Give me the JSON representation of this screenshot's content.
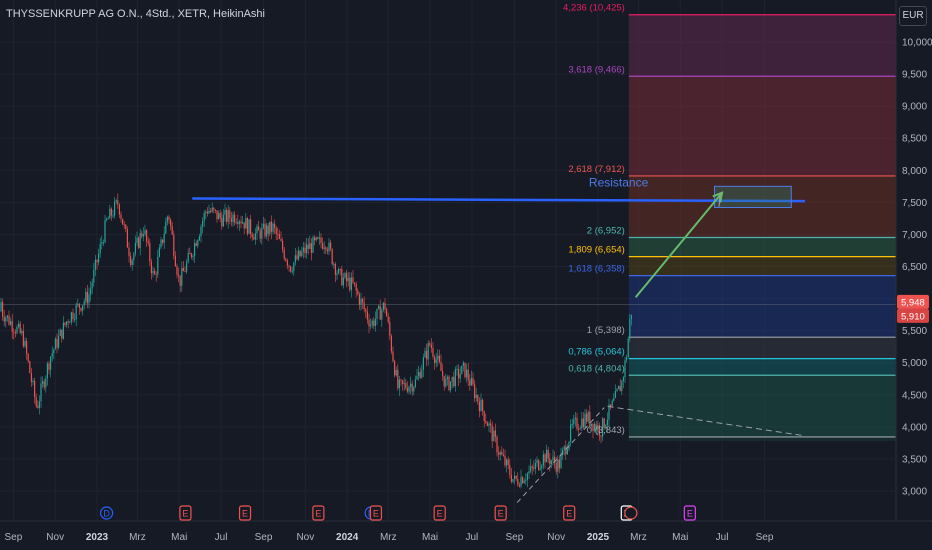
{
  "header": {
    "title": "THYSSENKRUPP AG O.N., 4Std., XETR, HeikinAshi",
    "currency_button": "EUR"
  },
  "colors": {
    "background": "#161a25",
    "up": "#26a69a",
    "down": "#ef5350",
    "resistance": "#2962ff",
    "arrow": "#66bb6a"
  },
  "chart_data": {
    "type": "candlestick",
    "chart_style": "HeikinAshi",
    "y_axis": {
      "scale": "linear",
      "ylim": [
        2600,
        10700
      ],
      "ticks": [
        3000,
        3500,
        4000,
        4500,
        5000,
        5500,
        6000,
        6500,
        7000,
        7500,
        8000,
        8500,
        9000,
        9500,
        10000
      ],
      "tick_labels": [
        "3,000",
        "3,500",
        "4,000",
        "4,500",
        "5,000",
        "5,500",
        "6,000",
        "6,500",
        "7,000",
        "7,500",
        "8,000",
        "8,500",
        "9,000",
        "9,500",
        "10,000"
      ]
    },
    "x_axis": {
      "ticks": [
        {
          "date": "2022-09-01",
          "label": "Sep",
          "bold": false
        },
        {
          "date": "2022-11-01",
          "label": "Nov",
          "bold": false
        },
        {
          "date": "2023-01-01",
          "label": "2023",
          "bold": true
        },
        {
          "date": "2023-03-01",
          "label": "Mrz",
          "bold": false
        },
        {
          "date": "2023-05-01",
          "label": "Mai",
          "bold": false
        },
        {
          "date": "2023-07-01",
          "label": "Jul",
          "bold": false
        },
        {
          "date": "2023-09-01",
          "label": "Sep",
          "bold": false
        },
        {
          "date": "2023-11-01",
          "label": "Nov",
          "bold": false
        },
        {
          "date": "2024-01-01",
          "label": "2024",
          "bold": true
        },
        {
          "date": "2024-03-01",
          "label": "Mrz",
          "bold": false
        },
        {
          "date": "2024-05-01",
          "label": "Mai",
          "bold": false
        },
        {
          "date": "2024-07-01",
          "label": "Jul",
          "bold": false
        },
        {
          "date": "2024-09-01",
          "label": "Sep",
          "bold": false
        },
        {
          "date": "2024-11-01",
          "label": "Nov",
          "bold": false
        },
        {
          "date": "2025-01-01",
          "label": "2025",
          "bold": true
        },
        {
          "date": "2025-03-01",
          "label": "Mrz",
          "bold": false
        },
        {
          "date": "2025-05-01",
          "label": "Mai",
          "bold": false
        },
        {
          "date": "2025-07-01",
          "label": "Jul",
          "bold": false
        },
        {
          "date": "2025-09-01",
          "label": "Sep",
          "bold": false
        }
      ]
    },
    "price_path": [
      {
        "date": "2022-08-15",
        "price": 5800
      },
      {
        "date": "2022-09-15",
        "price": 5400
      },
      {
        "date": "2022-10-05",
        "price": 4300
      },
      {
        "date": "2022-10-25",
        "price": 5100
      },
      {
        "date": "2022-11-20",
        "price": 5700
      },
      {
        "date": "2022-12-20",
        "price": 6050
      },
      {
        "date": "2023-01-15",
        "price": 7200
      },
      {
        "date": "2023-02-01",
        "price": 7500
      },
      {
        "date": "2023-02-20",
        "price": 6600
      },
      {
        "date": "2023-03-10",
        "price": 7100
      },
      {
        "date": "2023-03-25",
        "price": 6300
      },
      {
        "date": "2023-04-15",
        "price": 7350
      },
      {
        "date": "2023-05-01",
        "price": 6250
      },
      {
        "date": "2023-05-20",
        "price": 6750
      },
      {
        "date": "2023-06-10",
        "price": 7400
      },
      {
        "date": "2023-07-01",
        "price": 7250
      },
      {
        "date": "2023-07-25",
        "price": 7300
      },
      {
        "date": "2023-08-20",
        "price": 7000
      },
      {
        "date": "2023-09-15",
        "price": 7100
      },
      {
        "date": "2023-10-10",
        "price": 6500
      },
      {
        "date": "2023-11-05",
        "price": 6800
      },
      {
        "date": "2023-12-01",
        "price": 6900
      },
      {
        "date": "2023-12-20",
        "price": 6350
      },
      {
        "date": "2024-01-10",
        "price": 6200
      },
      {
        "date": "2024-02-05",
        "price": 5600
      },
      {
        "date": "2024-02-25",
        "price": 5900
      },
      {
        "date": "2024-03-15",
        "price": 4600
      },
      {
        "date": "2024-04-10",
        "price": 4700
      },
      {
        "date": "2024-05-01",
        "price": 5300
      },
      {
        "date": "2024-05-25",
        "price": 4650
      },
      {
        "date": "2024-06-20",
        "price": 4900
      },
      {
        "date": "2024-07-15",
        "price": 4300
      },
      {
        "date": "2024-08-10",
        "price": 3600
      },
      {
        "date": "2024-09-01",
        "price": 3150
      },
      {
        "date": "2024-09-25",
        "price": 3300
      },
      {
        "date": "2024-10-15",
        "price": 3550
      },
      {
        "date": "2024-11-05",
        "price": 3400
      },
      {
        "date": "2024-11-25",
        "price": 4000
      },
      {
        "date": "2024-12-15",
        "price": 4150
      },
      {
        "date": "2025-01-05",
        "price": 3950
      },
      {
        "date": "2025-01-25",
        "price": 4400
      },
      {
        "date": "2025-02-05",
        "price": 4700
      },
      {
        "date": "2025-02-12",
        "price": 5150
      },
      {
        "date": "2025-02-17",
        "price": 5700
      },
      {
        "date": "2025-02-21",
        "price": 5948
      }
    ],
    "last_price": {
      "value": 5948,
      "label": "5,948"
    },
    "prev_close": {
      "value": 5910,
      "label": "5,910"
    },
    "fibonacci_extension": {
      "start_date": "2025-02-15",
      "levels": [
        {
          "ratio": "0",
          "price": 3843,
          "label": "0 (3,843)",
          "color": "#a0a4ae"
        },
        {
          "ratio": "0.618",
          "price": 4804,
          "label": "0,618 (4,804)",
          "color": "#4db6ac"
        },
        {
          "ratio": "0.786",
          "price": 5064,
          "label": "0,786 (5,064)",
          "color": "#26c6da"
        },
        {
          "ratio": "1",
          "price": 5398,
          "label": "1 (5,398)",
          "color": "#9ea2ab"
        },
        {
          "ratio": "1.618",
          "price": 6358,
          "label": "1,618 (6,358)",
          "color": "#3d67e6"
        },
        {
          "ratio": "1.809",
          "price": 6654,
          "label": "1,809 (6,654)",
          "color": "#ffc107"
        },
        {
          "ratio": "2",
          "price": 6952,
          "label": "2 (6,952)",
          "color": "#4db6ac"
        },
        {
          "ratio": "2.618",
          "price": 7912,
          "label": "2,618 (7,912)",
          "color": "#ef5350"
        },
        {
          "ratio": "3.618",
          "price": 9466,
          "label": "3,618 (9,466)",
          "color": "#ab47bc"
        },
        {
          "ratio": "4.236",
          "price": 10425,
          "label": "4,236 (10,425)",
          "color": "#e91e63"
        }
      ]
    },
    "resistance_line": {
      "label": "Resistance",
      "start": {
        "date": "2023-05-20",
        "price": 7560
      },
      "end": {
        "date": "2025-10-30",
        "price": 7520
      }
    },
    "target_box": {
      "start_date": "2025-06-20",
      "end_date": "2025-10-10",
      "top": 7750,
      "bottom": 7420
    },
    "projection_arrow": {
      "from": {
        "date": "2025-02-25",
        "price": 6020
      },
      "to": {
        "date": "2025-07-01",
        "price": 7650
      }
    },
    "dashed_trendline": {
      "start": {
        "date": "2025-01-15",
        "price": 4320
      },
      "end": {
        "date": "2025-10-30",
        "price": 3860
      }
    },
    "dashed_support": {
      "start": {
        "date": "2024-09-05",
        "price": 2820
      },
      "end": {
        "date": "2025-01-10",
        "price": 4300
      }
    },
    "events": [
      {
        "date": "2023-01-15",
        "letter": "D",
        "kind": "dividend",
        "color": "#2962ff"
      },
      {
        "date": "2023-05-10",
        "letter": "E",
        "kind": "earnings",
        "color": "#ef5350"
      },
      {
        "date": "2023-08-05",
        "letter": "E",
        "kind": "earnings",
        "color": "#ef5350"
      },
      {
        "date": "2023-11-20",
        "letter": "E",
        "kind": "earnings",
        "color": "#ef5350"
      },
      {
        "date": "2024-02-05",
        "letter": "D",
        "kind": "dividend",
        "color": "#2962ff"
      },
      {
        "date": "2024-02-12",
        "letter": "E",
        "kind": "earnings",
        "color": "#ef5350"
      },
      {
        "date": "2024-05-15",
        "letter": "E",
        "kind": "earnings",
        "color": "#ef5350"
      },
      {
        "date": "2024-08-12",
        "letter": "E",
        "kind": "earnings",
        "color": "#ef5350"
      },
      {
        "date": "2024-11-20",
        "letter": "E",
        "kind": "earnings",
        "color": "#ef5350"
      },
      {
        "date": "2025-02-12",
        "letter": "E",
        "kind": "earnings",
        "color": "#ffffff"
      },
      {
        "date": "2025-02-18",
        "letter": "",
        "kind": "dividend",
        "color": "#ef5350"
      },
      {
        "date": "2025-05-15",
        "letter": "E",
        "kind": "earnings",
        "color": "#e040fb"
      }
    ]
  }
}
